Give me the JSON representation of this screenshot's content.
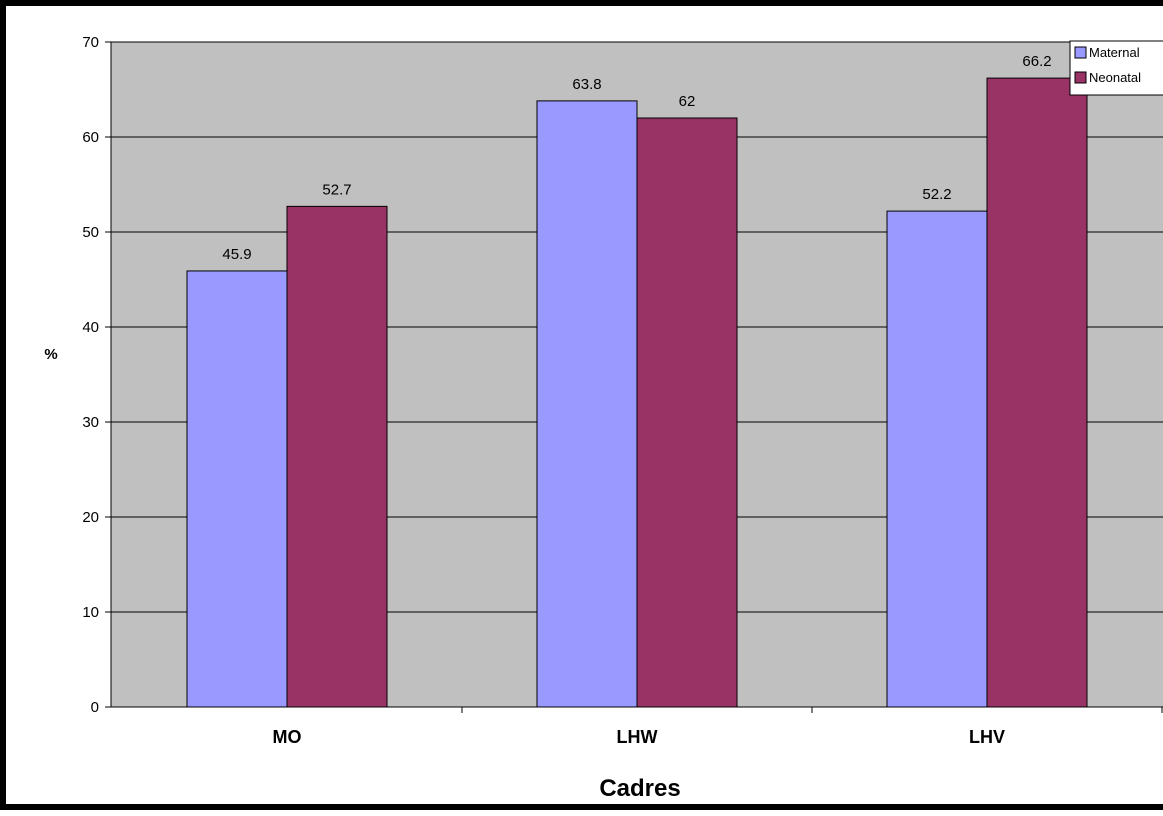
{
  "chart_data": {
    "type": "bar",
    "categories": [
      "MO",
      "LHW",
      "LHV"
    ],
    "series": [
      {
        "name": "Maternal",
        "values": [
          45.9,
          63.8,
          52.2
        ],
        "color": "#9999ff"
      },
      {
        "name": "Neonatal",
        "values": [
          52.7,
          62,
          66.2
        ],
        "color": "#993366"
      }
    ],
    "xlabel": "Cadres",
    "ylabel": "%",
    "ylim": [
      0,
      70
    ],
    "yticks": [
      0,
      10,
      20,
      30,
      40,
      50,
      60,
      70
    ],
    "grid": true,
    "legend_position": "top-right",
    "plot_background": "#c0c0c0"
  }
}
